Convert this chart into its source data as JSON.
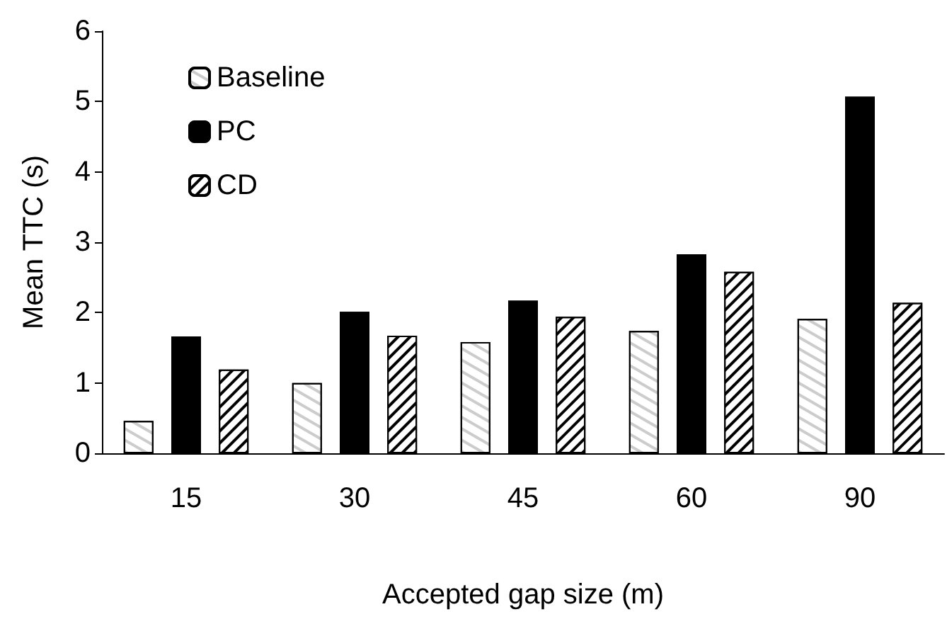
{
  "chart_data": {
    "type": "bar",
    "xlabel": "Accepted gap size (m)",
    "ylabel": "Mean TTC (s)",
    "categories": [
      "15",
      "30",
      "45",
      "60",
      "90"
    ],
    "series": [
      {
        "name": "Baseline",
        "color": "#ffffff",
        "values": [
          0.46,
          1.0,
          1.58,
          1.74,
          1.91
        ]
      },
      {
        "name": "PC",
        "color": "#000000",
        "values": [
          1.66,
          2.01,
          2.17,
          2.83,
          5.07
        ]
      },
      {
        "name": "CD",
        "color": "#ffffff",
        "values": [
          1.19,
          1.67,
          1.94,
          2.58,
          2.14
        ]
      }
    ],
    "ylim": [
      0,
      6
    ],
    "yticks": [
      0,
      1,
      2,
      3,
      4,
      5,
      6
    ],
    "grid": false,
    "legend": "top left"
  }
}
